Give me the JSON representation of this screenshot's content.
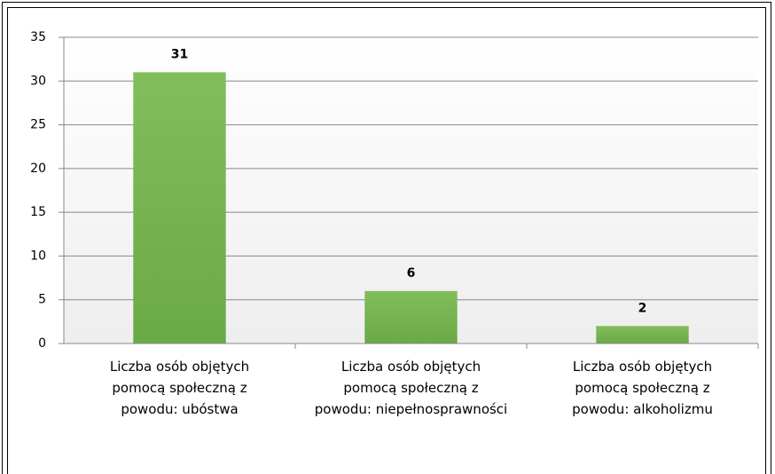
{
  "chart_data": {
    "type": "bar",
    "categories": [
      "Liczba osób objętych pomocą społeczną z powodu: ubóstwa",
      "Liczba osób objętych pomocą społeczną z powodu: niepełnosprawności",
      "Liczba osób objętych pomocą społeczną z powodu: alkoholizmu"
    ],
    "values": [
      31,
      6,
      2
    ],
    "color": "#6aaa45",
    "ylim": [
      0,
      35
    ],
    "yticks": [
      0,
      5,
      10,
      15,
      20,
      25,
      30,
      35
    ],
    "grid": true
  }
}
